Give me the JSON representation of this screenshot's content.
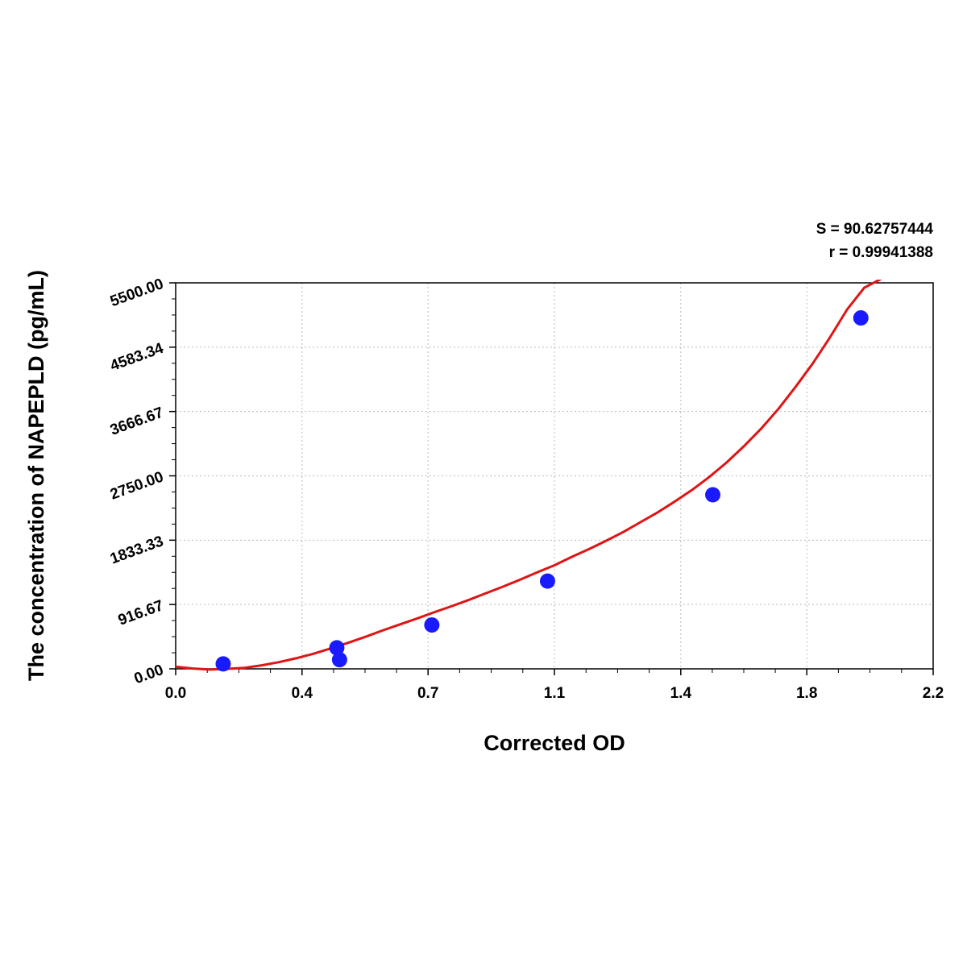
{
  "chart_data": {
    "type": "scatter",
    "title": "",
    "xlabel": "Corrected OD",
    "ylabel": "The concentration of NAPEPLD (pg/mL)",
    "xlim": [
      0.0,
      2.2
    ],
    "ylim": [
      0.0,
      5500.0
    ],
    "x_ticks": [
      "0.0",
      "0.4",
      "0.7",
      "1.1",
      "1.4",
      "1.8",
      "2.2"
    ],
    "x_tick_values": [
      0.0,
      0.367,
      0.733,
      1.1,
      1.467,
      1.833,
      2.2
    ],
    "y_ticks": [
      "0.00",
      "916.67",
      "1833.33",
      "2750.00",
      "3666.67",
      "4583.34",
      "5500.00"
    ],
    "y_tick_values": [
      0.0,
      916.67,
      1833.33,
      2750.0,
      3666.67,
      4583.34,
      5500.0
    ],
    "grid": true,
    "colors": {
      "points": "#1a1aff",
      "curve": "#e01414",
      "grid": "#bbbbbb"
    },
    "points": [
      {
        "x": 0.138,
        "y": 70
      },
      {
        "x": 0.468,
        "y": 300
      },
      {
        "x": 0.476,
        "y": 130
      },
      {
        "x": 0.744,
        "y": 625
      },
      {
        "x": 1.08,
        "y": 1250
      },
      {
        "x": 1.56,
        "y": 2480
      },
      {
        "x": 1.99,
        "y": 5000
      }
    ],
    "fit_curve": {
      "x": [
        0.0,
        0.05,
        0.1,
        0.15,
        0.2,
        0.25,
        0.3,
        0.35,
        0.4,
        0.45,
        0.5,
        0.55,
        0.6,
        0.65,
        0.7,
        0.75,
        0.8,
        0.85,
        0.9,
        0.95,
        1.0,
        1.05,
        1.1,
        1.15,
        1.2,
        1.25,
        1.3,
        1.35,
        1.4,
        1.45,
        1.5,
        1.55,
        1.6,
        1.65,
        1.7,
        1.75,
        1.8,
        1.85,
        1.9,
        1.95,
        2.0,
        2.05,
        2.06
      ],
      "y": [
        30,
        5,
        -10,
        0,
        15,
        50,
        95,
        150,
        215,
        290,
        370,
        455,
        545,
        630,
        715,
        805,
        890,
        980,
        1075,
        1170,
        1270,
        1375,
        1475,
        1595,
        1705,
        1825,
        1950,
        2090,
        2230,
        2385,
        2550,
        2735,
        2940,
        3170,
        3420,
        3700,
        4015,
        4350,
        4720,
        5120,
        5430,
        5560,
        5600
      ]
    },
    "stats": {
      "s": "S = 90.62757444",
      "r": "r = 0.99941388"
    }
  }
}
